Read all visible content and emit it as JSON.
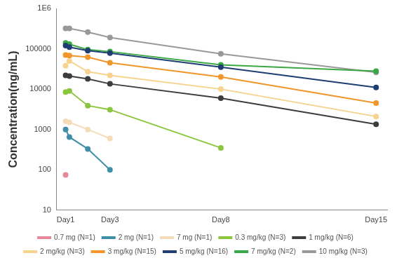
{
  "chart_data": {
    "type": "line",
    "y_label": "Concentration(ng/mL)",
    "x": [
      1,
      1.17,
      2,
      3,
      8,
      15
    ],
    "xlim": [
      0.6,
      15.5
    ],
    "xticks": [
      {
        "value": 1,
        "label": "Day1"
      },
      {
        "value": 3,
        "label": "Day3"
      },
      {
        "value": 8,
        "label": "Day8"
      },
      {
        "value": 15,
        "label": "Day15"
      }
    ],
    "ylim": [
      10,
      1000000
    ],
    "yticks": [
      10,
      100,
      1000,
      10000,
      100000,
      {
        "value": 1000000,
        "label": "1E6"
      }
    ],
    "log": "y",
    "grid": false,
    "legend": "bottom",
    "marker": "circle",
    "line_style": "solid",
    "series": [
      {
        "name": "0.7 mg (N=1)",
        "color": "#e8889a",
        "values": [
          75,
          null,
          null,
          null,
          null,
          null
        ]
      },
      {
        "name": "2 mg (N=1)",
        "color": "#3f8fa8",
        "values": [
          1000,
          650,
          330,
          100,
          null,
          null
        ]
      },
      {
        "name": "7 mg (N=1)",
        "color": "#f5dcb8",
        "values": [
          1600,
          1500,
          1000,
          600,
          null,
          null
        ]
      },
      {
        "name": "0.3 mg/kg (N=3)",
        "color": "#8cc63f",
        "values": [
          8500,
          9000,
          3900,
          3100,
          350,
          null
        ]
      },
      {
        "name": "1 mg/kg (N=6)",
        "color": "#3d3d3d",
        "values": [
          22000,
          21000,
          18000,
          13500,
          6000,
          1350
        ]
      },
      {
        "name": "2 mg/kg (N=3)",
        "color": "#f7d38f",
        "values": [
          38000,
          50000,
          27000,
          22000,
          10000,
          2100
        ]
      },
      {
        "name": "3 mg/kg (N=15)",
        "color": "#f0962b",
        "values": [
          70000,
          68000,
          62000,
          45000,
          20000,
          4500
        ]
      },
      {
        "name": "5 mg/kg (N=16)",
        "color": "#1f3f73",
        "values": [
          120000,
          110000,
          90000,
          78000,
          35000,
          11000
        ]
      },
      {
        "name": "7 mg/kg (N=2)",
        "color": "#3aa845",
        "values": [
          140000,
          130000,
          95000,
          85000,
          40000,
          28000
        ]
      },
      {
        "name": "10 mg/kg (N=3)",
        "color": "#999999",
        "values": [
          320000,
          320000,
          260000,
          190000,
          75000,
          26000
        ]
      }
    ]
  }
}
